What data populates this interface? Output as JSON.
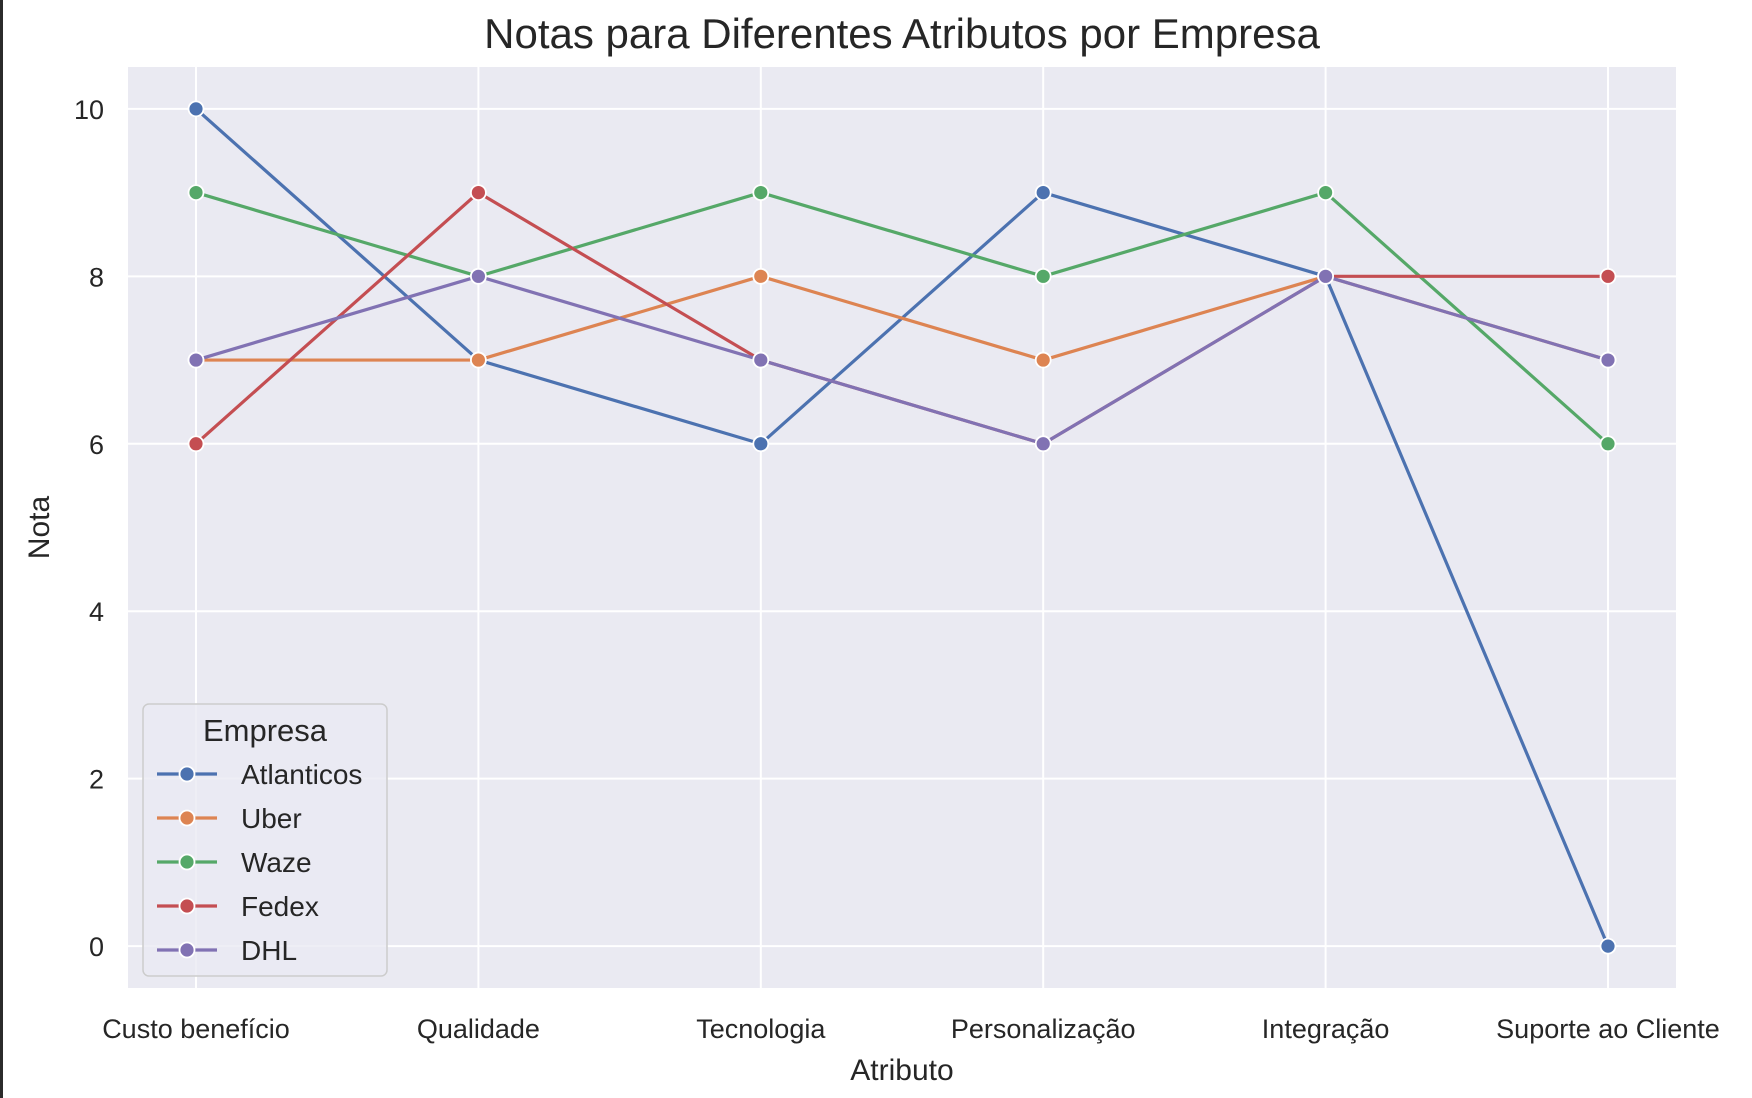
{
  "chart_data": {
    "type": "line",
    "title": "Notas para Diferentes Atributos por Empresa",
    "xlabel": "Atributo",
    "ylabel": "Nota",
    "categories": [
      "Custo benefício",
      "Qualidade",
      "Tecnologia",
      "Personalização",
      "Integração",
      "Suporte ao Cliente"
    ],
    "ylim": [
      -0.5,
      10.5
    ],
    "yticks": [
      0,
      2,
      4,
      6,
      8,
      10
    ],
    "grid": true,
    "legend": {
      "title": "Empresa",
      "placement": "lower-left"
    },
    "series": [
      {
        "name": "Atlanticos",
        "color": "#4c72b0",
        "values": [
          10,
          7,
          6,
          9,
          8,
          0
        ]
      },
      {
        "name": "Uber",
        "color": "#dd8452",
        "values": [
          7,
          7,
          8,
          7,
          8,
          7
        ]
      },
      {
        "name": "Waze",
        "color": "#55a868",
        "values": [
          9,
          8,
          9,
          8,
          9,
          6
        ]
      },
      {
        "name": "Fedex",
        "color": "#c44e52",
        "values": [
          6,
          9,
          7,
          6,
          8,
          8
        ]
      },
      {
        "name": "DHL",
        "color": "#8172b3",
        "values": [
          7,
          8,
          7,
          6,
          8,
          7
        ]
      }
    ],
    "colors": {
      "plot_background": "#eaeaf2",
      "gridline": "#ffffff"
    }
  }
}
